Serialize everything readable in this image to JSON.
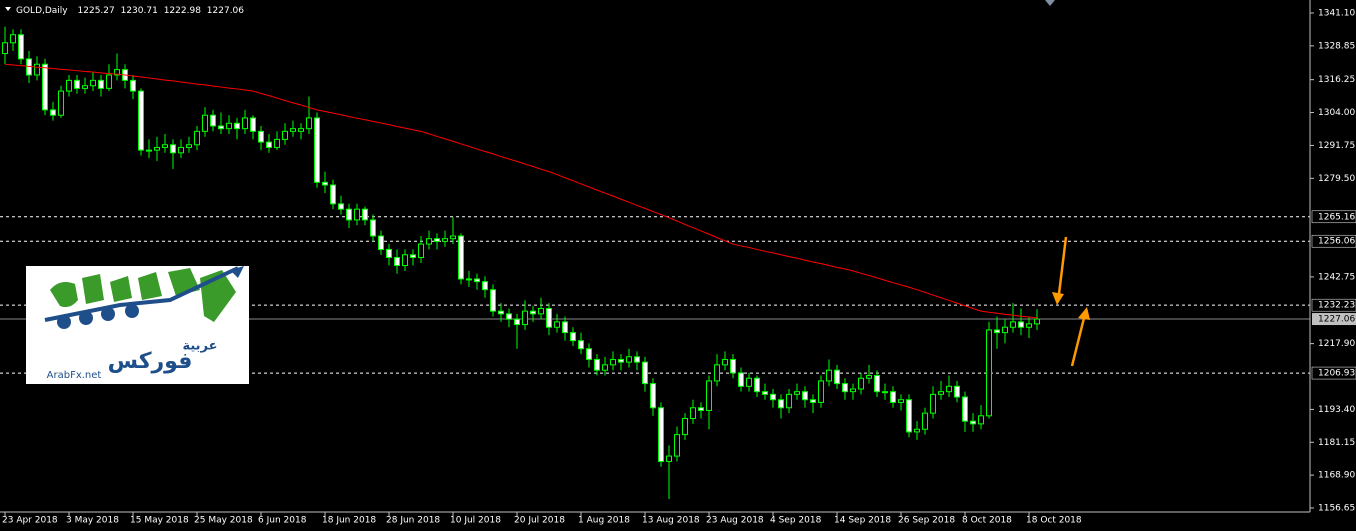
{
  "chart_data": {
    "type": "candlestick",
    "title": "GOLD,Daily",
    "header_values": [
      1225.27,
      1230.71,
      1222.98,
      1227.06
    ],
    "color": "#00ff00",
    "ylim": [
      1155.16,
      1345.94
    ],
    "yticks": [
      {
        "value": 1341.1,
        "label": "1341.10"
      },
      1328.85,
      1316.25,
      {
        "value": 1304,
        "label": "1304.00"
      },
      1291.75,
      {
        "value": 1279.5,
        "label": "1279.50"
      },
      1242.75,
      {
        "value": 1217.9,
        "label": "1217.90"
      },
      {
        "value": 1193.4,
        "label": "1193.40"
      },
      1181.15,
      {
        "value": 1168.9,
        "label": "1168.90"
      },
      1156.65
    ],
    "levels": [
      1265.16,
      1256.06,
      1232.23,
      1206.93
    ],
    "current_price": 1227.06,
    "categories": [
      "23 Apr 2018",
      null,
      null,
      null,
      null,
      null,
      null,
      null,
      "3 May 2018",
      null,
      null,
      null,
      null,
      null,
      null,
      null,
      "15 May 2018",
      null,
      null,
      null,
      null,
      null,
      null,
      null,
      "25 May 2018",
      null,
      null,
      null,
      null,
      null,
      null,
      null,
      "6 Jun 2018",
      null,
      null,
      null,
      null,
      null,
      null,
      null,
      "18 Jun 2018",
      null,
      null,
      null,
      null,
      null,
      null,
      null,
      "28 Jun 2018",
      null,
      null,
      null,
      null,
      null,
      null,
      null,
      "10 Jul 2018",
      null,
      null,
      null,
      null,
      null,
      null,
      null,
      "20 Jul 2018",
      null,
      null,
      null,
      null,
      null,
      null,
      null,
      "1 Aug 2018",
      null,
      null,
      null,
      null,
      null,
      null,
      null,
      "13 Aug 2018",
      null,
      null,
      null,
      null,
      null,
      null,
      null,
      "23 Aug 2018",
      null,
      null,
      null,
      null,
      null,
      null,
      null,
      "4 Sep 2018",
      null,
      null,
      null,
      null,
      null,
      null,
      null,
      "14 Sep 2018",
      null,
      null,
      null,
      null,
      null,
      null,
      null,
      "26 Sep 2018",
      null,
      null,
      null,
      null,
      null,
      null,
      null,
      "8 Oct 2018",
      null,
      null,
      null,
      null,
      null,
      null,
      null,
      "18 Oct 2018",
      null
    ],
    "ohlc": [
      [
        1326,
        1336,
        1322,
        1330
      ],
      [
        1330,
        1335,
        1327,
        1333
      ],
      [
        1333,
        1335,
        1322,
        1324
      ],
      [
        1324,
        1327,
        1315,
        1318
      ],
      [
        1318,
        1325,
        1316,
        1322
      ],
      [
        1322,
        1324,
        1303,
        1305
      ],
      [
        1305,
        1308,
        1301,
        1303
      ],
      [
        1303,
        1314,
        1302,
        1312
      ],
      [
        1312,
        1318,
        1310,
        1316
      ],
      [
        1316,
        1318,
        1311,
        1313
      ],
      [
        1313,
        1317,
        1311,
        1314
      ],
      [
        1314,
        1319,
        1312,
        1316
      ],
      [
        1316,
        1318,
        1310,
        1313
      ],
      [
        1313,
        1322,
        1312,
        1318
      ],
      [
        1318,
        1326,
        1316,
        1320
      ],
      [
        1320,
        1322,
        1313,
        1316
      ],
      [
        1316,
        1318,
        1309,
        1312
      ],
      [
        1312,
        1313,
        1288,
        1290
      ],
      [
        1290,
        1294,
        1287,
        1290
      ],
      [
        1290,
        1295,
        1286,
        1291
      ],
      [
        1291,
        1296,
        1289,
        1292
      ],
      [
        1292,
        1294,
        1283,
        1289
      ],
      [
        1289,
        1294,
        1287,
        1291
      ],
      [
        1291,
        1295,
        1289,
        1292
      ],
      [
        1292,
        1299,
        1290,
        1297
      ],
      [
        1297,
        1306,
        1295,
        1303
      ],
      [
        1303,
        1305,
        1297,
        1299
      ],
      [
        1299,
        1304,
        1296,
        1298
      ],
      [
        1298,
        1303,
        1296,
        1300
      ],
      [
        1300,
        1302,
        1294,
        1298
      ],
      [
        1298,
        1305,
        1296,
        1302
      ],
      [
        1302,
        1303,
        1294,
        1297
      ],
      [
        1297,
        1299,
        1290,
        1293
      ],
      [
        1293,
        1296,
        1289,
        1291
      ],
      [
        1291,
        1297,
        1290,
        1294
      ],
      [
        1294,
        1300,
        1292,
        1297
      ],
      [
        1297,
        1301,
        1295,
        1298
      ],
      [
        1297,
        1300,
        1294,
        1298
      ],
      [
        1298,
        1310,
        1296,
        1302
      ],
      [
        1302,
        1304,
        1276,
        1278
      ],
      [
        1278,
        1282,
        1274,
        1277
      ],
      [
        1277,
        1279,
        1268,
        1270
      ],
      [
        1270,
        1273,
        1266,
        1268
      ],
      [
        1268,
        1270,
        1261,
        1264
      ],
      [
        1264,
        1270,
        1262,
        1268
      ],
      [
        1268,
        1269,
        1262,
        1264
      ],
      [
        1264,
        1266,
        1256,
        1258
      ],
      [
        1258,
        1260,
        1251,
        1253
      ],
      [
        1253,
        1255,
        1247,
        1250
      ],
      [
        1250,
        1253,
        1244,
        1247
      ],
      [
        1247,
        1253,
        1245,
        1251
      ],
      [
        1251,
        1253,
        1247,
        1250
      ],
      [
        1250,
        1258,
        1248,
        1255
      ],
      [
        1255,
        1260,
        1253,
        1257
      ],
      [
        1257,
        1259,
        1253,
        1256
      ],
      [
        1256,
        1260,
        1254,
        1257
      ],
      [
        1257,
        1265,
        1255,
        1258
      ],
      [
        1258,
        1259,
        1240,
        1242
      ],
      [
        1242,
        1245,
        1239,
        1242
      ],
      [
        1242,
        1244,
        1238,
        1241
      ],
      [
        1241,
        1243,
        1235,
        1238
      ],
      [
        1238,
        1240,
        1228,
        1230
      ],
      [
        1230,
        1233,
        1226,
        1229
      ],
      [
        1229,
        1231,
        1224,
        1227
      ],
      [
        1227,
        1229,
        1216,
        1225
      ],
      [
        1225,
        1234,
        1223,
        1230
      ],
      [
        1230,
        1232,
        1226,
        1229
      ],
      [
        1229,
        1235,
        1227,
        1231
      ],
      [
        1231,
        1233,
        1221,
        1224
      ],
      [
        1224,
        1229,
        1222,
        1226
      ],
      [
        1226,
        1228,
        1219,
        1222
      ],
      [
        1222,
        1224,
        1217,
        1219
      ],
      [
        1219,
        1222,
        1214,
        1216
      ],
      [
        1216,
        1218,
        1209,
        1212
      ],
      [
        1212,
        1214,
        1206,
        1208
      ],
      [
        1208,
        1213,
        1206,
        1210
      ],
      [
        1210,
        1215,
        1208,
        1212
      ],
      [
        1212,
        1214,
        1208,
        1211
      ],
      [
        1211,
        1216,
        1209,
        1213
      ],
      [
        1213,
        1215,
        1208,
        1211
      ],
      [
        1211,
        1213,
        1200,
        1203
      ],
      [
        1203,
        1205,
        1191,
        1194
      ],
      [
        1194,
        1196,
        1172,
        1174
      ],
      [
        1174,
        1180,
        1160,
        1176
      ],
      [
        1176,
        1187,
        1174,
        1184
      ],
      [
        1184,
        1192,
        1182,
        1190
      ],
      [
        1190,
        1197,
        1188,
        1194
      ],
      [
        1194,
        1196,
        1190,
        1193
      ],
      [
        1193,
        1206,
        1186,
        1204
      ],
      [
        1204,
        1214,
        1202,
        1210
      ],
      [
        1210,
        1215,
        1208,
        1212
      ],
      [
        1212,
        1214,
        1205,
        1207
      ],
      [
        1207,
        1209,
        1200,
        1202
      ],
      [
        1202,
        1207,
        1200,
        1205
      ],
      [
        1205,
        1206,
        1198,
        1200
      ],
      [
        1200,
        1203,
        1197,
        1199
      ],
      [
        1199,
        1201,
        1194,
        1197
      ],
      [
        1197,
        1199,
        1190,
        1194
      ],
      [
        1194,
        1201,
        1192,
        1199
      ],
      [
        1199,
        1203,
        1197,
        1200
      ],
      [
        1200,
        1202,
        1194,
        1197
      ],
      [
        1197,
        1199,
        1192,
        1196
      ],
      [
        1196,
        1206,
        1194,
        1204
      ],
      [
        1204,
        1212,
        1202,
        1208
      ],
      [
        1208,
        1210,
        1201,
        1203
      ],
      [
        1203,
        1205,
        1197,
        1200
      ],
      [
        1200,
        1203,
        1197,
        1201
      ],
      [
        1201,
        1207,
        1199,
        1205
      ],
      [
        1205,
        1210,
        1203,
        1206
      ],
      [
        1206,
        1208,
        1198,
        1200
      ],
      [
        1200,
        1203,
        1197,
        1200
      ],
      [
        1200,
        1202,
        1194,
        1196
      ],
      [
        1196,
        1199,
        1193,
        1197
      ],
      [
        1197,
        1199,
        1183,
        1185
      ],
      [
        1185,
        1189,
        1182,
        1186
      ],
      [
        1186,
        1194,
        1184,
        1192
      ],
      [
        1192,
        1202,
        1190,
        1199
      ],
      [
        1199,
        1204,
        1197,
        1200
      ],
      [
        1200,
        1206,
        1198,
        1202
      ],
      [
        1202,
        1204,
        1196,
        1198
      ],
      [
        1198,
        1200,
        1185,
        1189
      ],
      [
        1189,
        1192,
        1185,
        1188
      ],
      [
        1188,
        1195,
        1186,
        1191
      ],
      [
        1191,
        1226,
        1190,
        1223
      ],
      [
        1223,
        1228,
        1216,
        1222
      ],
      [
        1222,
        1227,
        1218,
        1224
      ],
      [
        1224,
        1233,
        1222,
        1226
      ],
      [
        1226,
        1231,
        1221,
        1224
      ],
      [
        1224,
        1228,
        1220,
        1225.27
      ],
      [
        1225.27,
        1230.71,
        1222.98,
        1227.06
      ]
    ],
    "ma": {
      "color": "#ff0000",
      "values": [
        1322,
        1321.7,
        1321.5,
        1321.2,
        1320.9,
        1320.7,
        1320.4,
        1320.1,
        1319.9,
        1319.6,
        1319.3,
        1319.1,
        1318.8,
        1318.5,
        1318.3,
        1318,
        1317.6,
        1317.3,
        1316.9,
        1316.5,
        1316.1,
        1315.8,
        1315.4,
        1315,
        1314.6,
        1314.3,
        1313.9,
        1313.5,
        1313.1,
        1312.8,
        1312.4,
        1312,
        1311.1,
        1310.3,
        1309.4,
        1308.5,
        1307.6,
        1306.8,
        1305.9,
        1305,
        1304.4,
        1303.8,
        1303.2,
        1302.5,
        1301.9,
        1301.3,
        1300.7,
        1300.1,
        1299.5,
        1298.8,
        1298.2,
        1297.6,
        1297,
        1296.1,
        1295.1,
        1294.2,
        1293.3,
        1292.3,
        1291.4,
        1290.4,
        1289.5,
        1288.6,
        1287.6,
        1286.7,
        1285.8,
        1284.8,
        1283.9,
        1282.9,
        1282,
        1280.9,
        1279.7,
        1278.6,
        1277.4,
        1276.3,
        1275.1,
        1274,
        1272.9,
        1271.7,
        1270.6,
        1269.4,
        1268.3,
        1267.1,
        1266,
        1264.8,
        1263.6,
        1262.3,
        1261.1,
        1259.9,
        1258.7,
        1257.4,
        1256.2,
        1255,
        1254.3,
        1253.7,
        1253,
        1252.3,
        1251.7,
        1251,
        1250.3,
        1249.7,
        1249,
        1248.3,
        1247.7,
        1247,
        1246.3,
        1245.7,
        1245,
        1244.1,
        1243.3,
        1242.4,
        1241.5,
        1240.6,
        1239.8,
        1238.9,
        1238,
        1237,
        1236,
        1235,
        1234,
        1233,
        1232,
        1231,
        1230,
        1229.6,
        1229.2,
        1228.8,
        1228.5,
        1228.1,
        1227.8,
        1227.5
      ]
    }
  },
  "logo": {
    "arabic_top": "عربية",
    "arabic_main": "فوركس",
    "site": "ArabFx.net"
  }
}
